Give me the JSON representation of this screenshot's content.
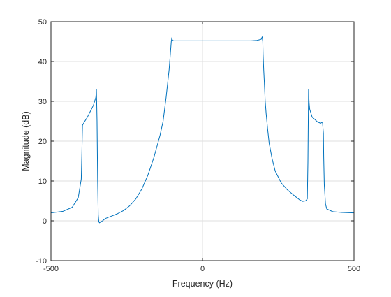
{
  "chart_data": {
    "type": "line",
    "title": "",
    "xlabel": "Frequency (Hz)",
    "ylabel": "Magnitude (dB)",
    "xlim": [
      -500,
      500
    ],
    "ylim": [
      -10,
      50
    ],
    "xticks": [
      -500,
      0,
      500
    ],
    "yticks": [
      -10,
      0,
      10,
      20,
      30,
      40,
      50
    ],
    "xtick_labels": [
      "-500",
      "0",
      "500"
    ],
    "ytick_labels": [
      "-10",
      "0",
      "10",
      "20",
      "30",
      "40",
      "50"
    ],
    "grid": true,
    "legend": "none",
    "colors": {
      "line": "#0072bd",
      "grid": "#dfdfdf",
      "axes": "#262626"
    },
    "series": [
      {
        "color": "#0072bd",
        "x": [
          -500,
          -460,
          -430,
          -410,
          -400,
          -398,
          -396,
          -390,
          -380,
          -370,
          -360,
          -352,
          -350,
          -348,
          -346,
          -344,
          -342,
          -340,
          -330,
          -320,
          -300,
          -280,
          -260,
          -240,
          -220,
          -200,
          -180,
          -160,
          -140,
          -130,
          -120,
          -110,
          -106,
          -103,
          -101,
          -100,
          -98,
          -95,
          -90,
          -80,
          -60,
          -40,
          -20,
          0,
          20,
          40,
          60,
          80,
          100,
          120,
          140,
          160,
          180,
          190,
          194,
          197,
          199,
          200,
          202,
          204,
          207,
          210,
          215,
          220,
          230,
          240,
          260,
          280,
          300,
          320,
          330,
          340,
          346,
          348,
          350,
          352,
          354,
          358,
          362,
          370,
          380,
          390,
          396,
          399,
          400,
          402,
          406,
          410,
          430,
          460,
          500
        ],
        "y": [
          2.0,
          2.4,
          3.4,
          5.8,
          10.5,
          17.0,
          24.0,
          24.8,
          26.0,
          27.5,
          29.0,
          31.0,
          33.0,
          25.0,
          10.0,
          1.5,
          -0.2,
          -0.5,
          0.0,
          0.6,
          1.2,
          1.8,
          2.6,
          3.8,
          5.5,
          8.0,
          11.5,
          16.0,
          21.5,
          25.0,
          31.0,
          38.0,
          42.0,
          45.0,
          46.0,
          45.5,
          45.3,
          45.2,
          45.2,
          45.2,
          45.2,
          45.2,
          45.2,
          45.2,
          45.2,
          45.2,
          45.2,
          45.2,
          45.2,
          45.2,
          45.2,
          45.2,
          45.3,
          45.5,
          45.6,
          46.2,
          45.0,
          42.0,
          38.0,
          35.0,
          30.0,
          27.0,
          23.0,
          19.5,
          15.5,
          12.5,
          9.5,
          7.8,
          6.5,
          5.3,
          4.9,
          5.0,
          5.5,
          15.0,
          33.0,
          29.5,
          28.0,
          27.0,
          26.0,
          25.5,
          24.8,
          24.5,
          24.8,
          22.0,
          16.0,
          9.0,
          4.2,
          3.0,
          2.3,
          2.1,
          2.0
        ]
      }
    ]
  }
}
